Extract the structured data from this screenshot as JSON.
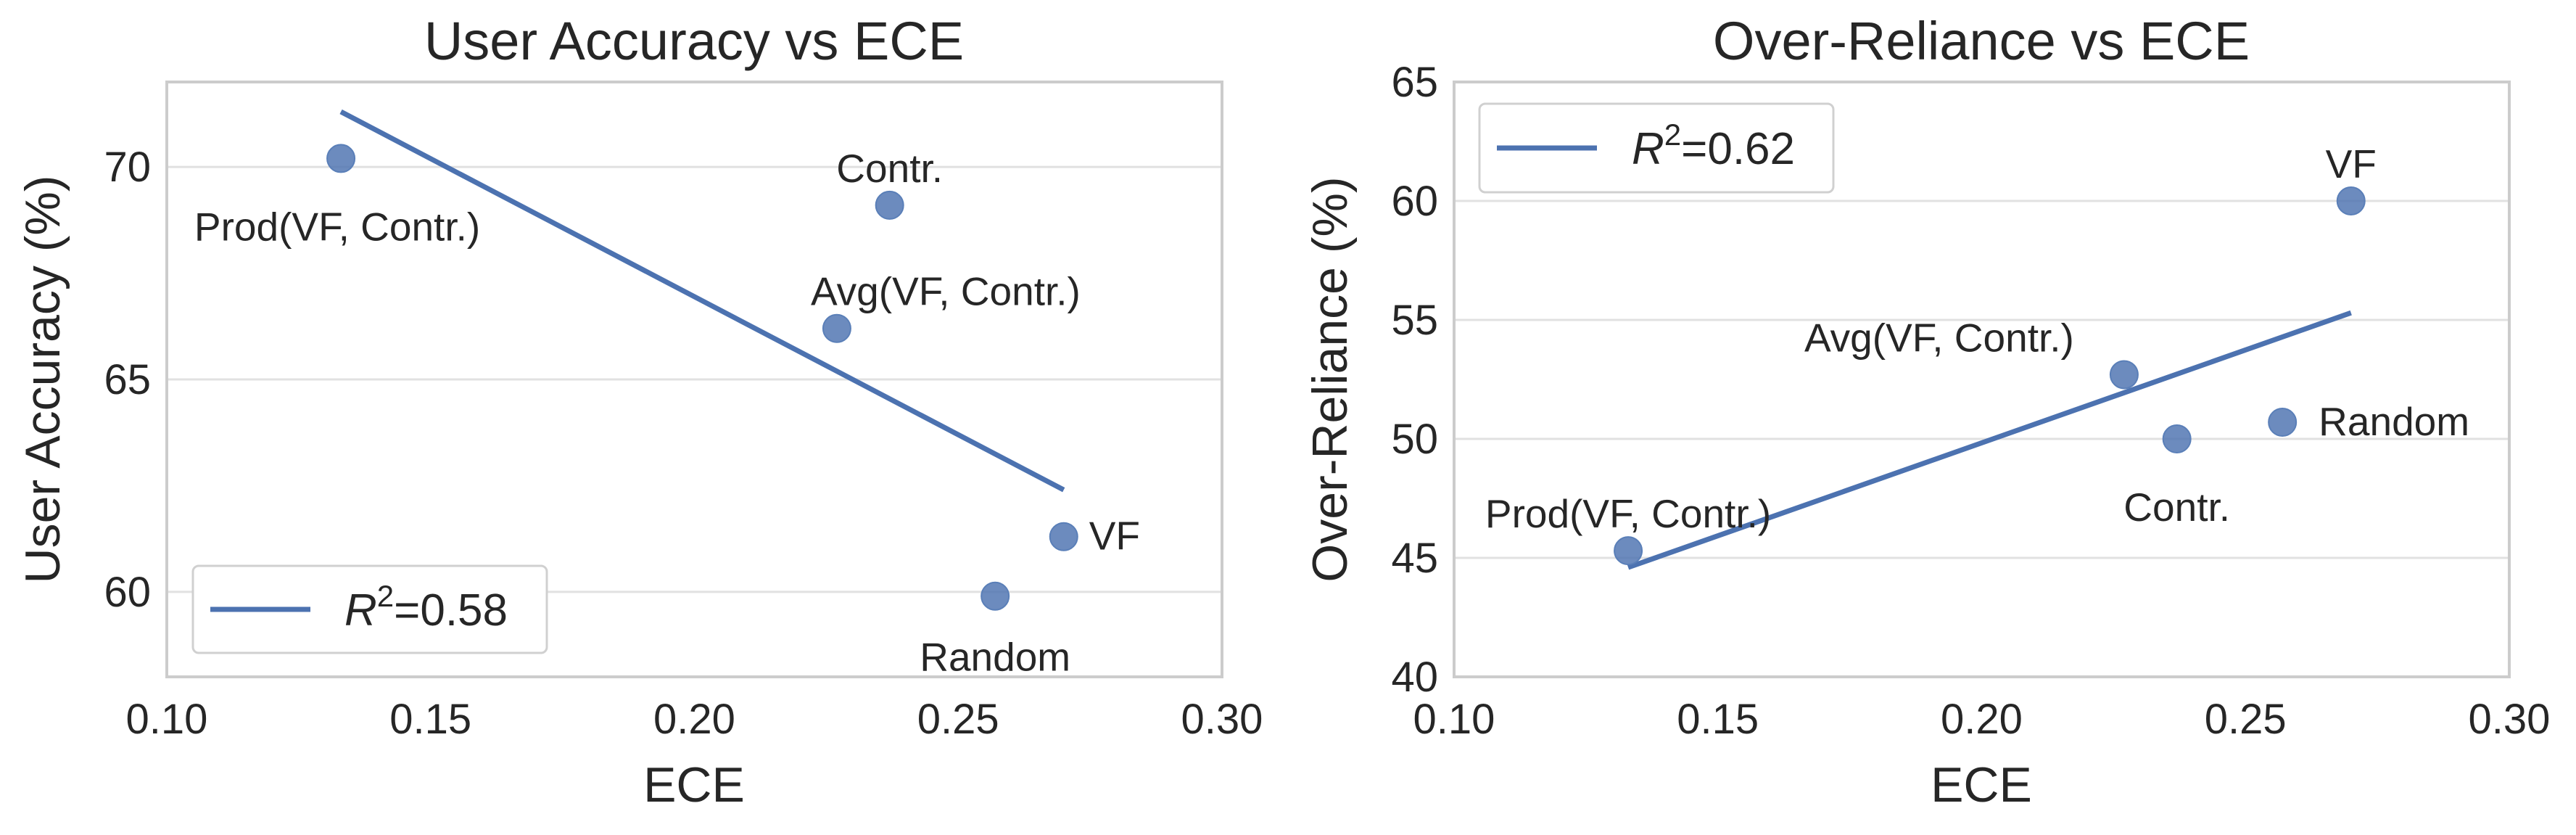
{
  "chart_data": [
    {
      "type": "scatter",
      "title": "User Accuracy vs ECE",
      "xlabel": "ECE",
      "ylabel": "User Accuracy (%)",
      "xlim": [
        0.1,
        0.3
      ],
      "ylim": [
        58,
        72
      ],
      "xticks": [
        0.1,
        0.15,
        0.2,
        0.25,
        0.3
      ],
      "yticks": [
        60,
        65,
        70
      ],
      "xtick_labels": [
        "0.10",
        "0.15",
        "0.20",
        "0.25",
        "0.30"
      ],
      "ytick_labels": [
        "60",
        "65",
        "70"
      ],
      "grid": "horizontal",
      "legend_position": "bottom-left",
      "points": [
        {
          "label": "Prod(VF, Contr.)",
          "x": 0.133,
          "y": 70.2
        },
        {
          "label": "Contr.",
          "x": 0.237,
          "y": 69.1
        },
        {
          "label": "Avg(VF, Contr.)",
          "x": 0.227,
          "y": 66.2
        },
        {
          "label": "VF",
          "x": 0.27,
          "y": 61.3
        },
        {
          "label": "Random",
          "x": 0.257,
          "y": 59.9
        }
      ],
      "fit_line": {
        "x": [
          0.133,
          0.27
        ],
        "y": [
          71.3,
          62.4
        ]
      },
      "legend": {
        "r2_value": "=0.58"
      },
      "colors": {
        "points": "#4c72b0",
        "line": "#4c72b0"
      }
    },
    {
      "type": "scatter",
      "title": "Over-Reliance vs ECE",
      "xlabel": "ECE",
      "ylabel": "Over-Reliance (%)",
      "xlim": [
        0.1,
        0.3
      ],
      "ylim": [
        40,
        65
      ],
      "xticks": [
        0.1,
        0.15,
        0.2,
        0.25,
        0.3
      ],
      "yticks": [
        40,
        45,
        50,
        55,
        60,
        65
      ],
      "xtick_labels": [
        "0.10",
        "0.15",
        "0.20",
        "0.25",
        "0.30"
      ],
      "ytick_labels": [
        "40",
        "45",
        "50",
        "55",
        "60",
        "65"
      ],
      "grid": "horizontal",
      "legend_position": "top-left",
      "points": [
        {
          "label": "VF",
          "x": 0.27,
          "y": 60.0
        },
        {
          "label": "Avg(VF, Contr.)",
          "x": 0.227,
          "y": 52.7
        },
        {
          "label": "Random",
          "x": 0.257,
          "y": 50.7
        },
        {
          "label": "Contr.",
          "x": 0.237,
          "y": 50.0
        },
        {
          "label": "Prod(VF, Contr.)",
          "x": 0.133,
          "y": 45.3
        }
      ],
      "fit_line": {
        "x": [
          0.133,
          0.27
        ],
        "y": [
          44.6,
          55.3
        ]
      },
      "legend": {
        "r2_value": "=0.62"
      },
      "colors": {
        "points": "#4c72b0",
        "line": "#4c72b0"
      }
    }
  ]
}
